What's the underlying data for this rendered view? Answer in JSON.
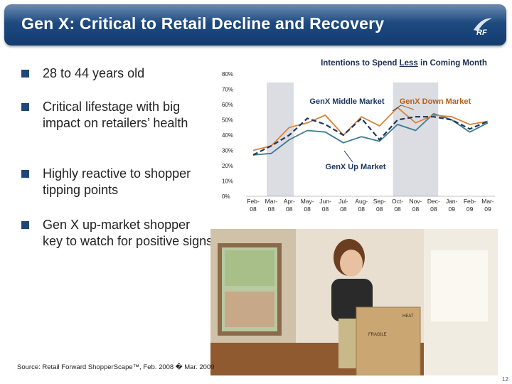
{
  "header": {
    "title": "Gen X: Critical to Retail Decline and Recovery",
    "logo_text": "RF"
  },
  "bullets": [
    {
      "text": "28 to 44 years old"
    },
    {
      "text": "Critical lifestage with big impact on retailers’ health"
    },
    {
      "text": "Highly reactive to shopper tipping points"
    },
    {
      "text": "Gen X up-market shopper key to watch for positive signs"
    }
  ],
  "chart_data": {
    "type": "line",
    "title": "Intentions to Spend Less in Coming Month",
    "title_underlined_word": "Less",
    "categories": [
      "Feb-08",
      "Mar-08",
      "Apr-08",
      "May-08",
      "Jun-08",
      "Jul-08",
      "Aug-08",
      "Sep-08",
      "Oct-08",
      "Nov-08",
      "Dec-08",
      "Jan-09",
      "Feb-09",
      "Mar-09"
    ],
    "category_top": [
      "Feb-",
      "Mar-",
      "Apr-",
      "May-",
      "Jun-",
      "Jul-",
      "Aug-",
      "Sep-",
      "Oct-",
      "Nov-",
      "Dec-",
      "Jan-",
      "Feb-",
      "Mar-"
    ],
    "category_bottom": [
      "08",
      "08",
      "08",
      "08",
      "08",
      "08",
      "08",
      "08",
      "08",
      "08",
      "08",
      "09",
      "09",
      "09"
    ],
    "yticks": [
      "0%",
      "10%",
      "20%",
      "30%",
      "40%",
      "50%",
      "60%",
      "70%",
      "80%"
    ],
    "ylim": [
      0,
      80
    ],
    "grid": false,
    "shaded_periods": [
      [
        "Mar-08",
        "Apr-08"
      ],
      [
        "Oct-08",
        "Dec-08"
      ]
    ],
    "series": [
      {
        "name": "GenX Middle Market",
        "color": "#1c3760",
        "dash": true,
        "values": [
          27,
          33,
          40,
          51,
          47,
          40,
          51,
          37,
          50,
          52,
          52,
          50,
          44,
          49
        ]
      },
      {
        "name": "GenX Down Market",
        "color": "#d9823a",
        "dash": false,
        "values": [
          30,
          33,
          45,
          48,
          53,
          40,
          52,
          46,
          58,
          48,
          53,
          52,
          47,
          49
        ]
      },
      {
        "name": "GenX Up Market",
        "color": "#3c7a90",
        "dash": false,
        "values": [
          27,
          28,
          37,
          43,
          42,
          35,
          39,
          36,
          47,
          43,
          54,
          50,
          42,
          48
        ]
      }
    ],
    "annotations": [
      {
        "text": "GenX Middle Market",
        "color": "#1c3760"
      },
      {
        "text": "GenX Down Market",
        "color": "#b85f15"
      },
      {
        "text": "GenX Up Market",
        "color": "#1c3760"
      }
    ]
  },
  "footer": {
    "source": "Source: Retail Forward ShopperScape™, Feb. 2008 � Mar. 2009",
    "page_number": "12"
  },
  "photo": {
    "box_label_1": "FRAGILE",
    "box_label_2": "HEAT"
  }
}
